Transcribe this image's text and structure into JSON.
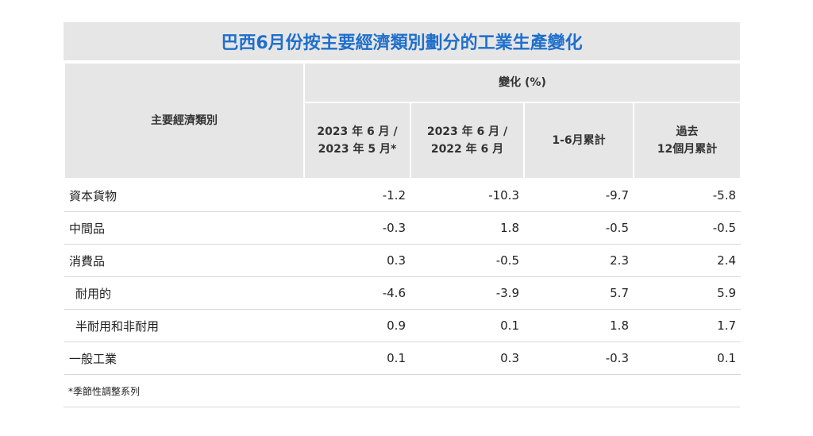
{
  "chart_data": {
    "type": "table",
    "title": "巴西6月份按主要經濟類別劃分的工業生產變化",
    "row_header": "主要經濟類別",
    "group_header": "變化 (%)",
    "columns": [
      [
        "2023 年 6 月 /",
        "2023 年 5 月*"
      ],
      [
        "2023 年 6 月 /",
        "2022 年 6 月"
      ],
      [
        "1-6月累計"
      ],
      [
        "過去",
        "12個月累計"
      ]
    ],
    "rows": [
      {
        "label": "資本貨物",
        "values": [
          "-1.2",
          "-10.3",
          "-9.7",
          "-5.8"
        ]
      },
      {
        "label": "中間品",
        "values": [
          "-0.3",
          "1.8",
          "-0.5",
          "-0.5"
        ]
      },
      {
        "label": "消費品",
        "values": [
          "0.3",
          "-0.5",
          "2.3",
          "2.4"
        ]
      },
      {
        "label": "耐用的",
        "values": [
          "-4.6",
          "-3.9",
          "5.7",
          "5.9"
        ]
      },
      {
        "label": "半耐用和非耐用",
        "values": [
          "0.9",
          "0.1",
          "1.8",
          "1.7"
        ]
      },
      {
        "label": "一般工業",
        "values": [
          "0.1",
          "0.3",
          "-0.3",
          "0.1"
        ]
      }
    ],
    "indented_rows": [
      3,
      4
    ],
    "footnote": "*季節性調整系列",
    "colors": {
      "title": "#1f6fcb",
      "header_bg": "#e6e6e6"
    }
  }
}
